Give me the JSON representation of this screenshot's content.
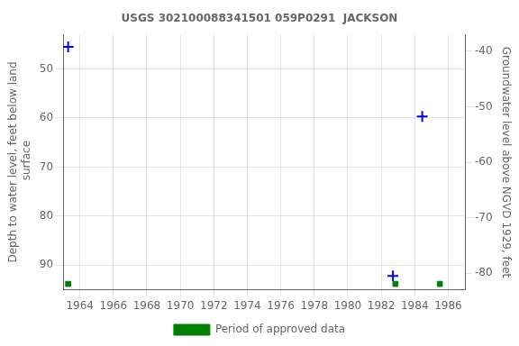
{
  "chart_data": {
    "type": "scatter",
    "title": "USGS 302100088341501 059P0291  JACKSON",
    "ylabel": "Depth to water level, feet below land\n surface",
    "y2label": "Groundwater level above NGVD 1929, feet",
    "xlim": [
      1963.0,
      1987.0
    ],
    "xticks": [
      1964,
      1966,
      1968,
      1970,
      1972,
      1974,
      1976,
      1978,
      1980,
      1982,
      1984,
      1986
    ],
    "ylim": [
      95.0,
      43.0
    ],
    "yticks": [
      50,
      60,
      70,
      80,
      90
    ],
    "y2lim": [
      -83.0,
      -37.0
    ],
    "y2ticks": [
      -40,
      -50,
      -60,
      -70,
      -80
    ],
    "grid": true,
    "legend": "bottom",
    "series": [
      {
        "color": "blue",
        "marker": "plus",
        "x": [
          1963.3,
          1984.45,
          1982.7
        ],
        "values": [
          45.5,
          59.7,
          92.2
        ]
      },
      {
        "name": "Period of approved data",
        "color": "#008000",
        "marker": "square",
        "x": [
          1963.3,
          1982.85,
          1985.5
        ],
        "values": [
          93.8,
          93.8,
          93.8
        ]
      }
    ]
  }
}
